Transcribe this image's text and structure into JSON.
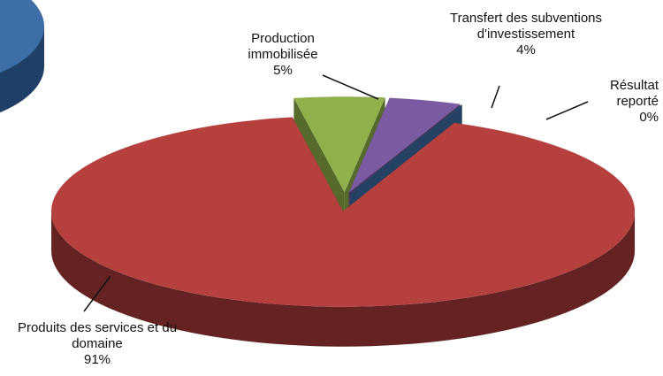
{
  "chart_data": {
    "type": "pie",
    "categories": [
      "Production immobilisée",
      "Transfert des subventions d'investissement",
      "Résultat reporté",
      "Produits des services et du domaine"
    ],
    "values": [
      5,
      4,
      0,
      91
    ],
    "value_labels": [
      "5%",
      "4%",
      "0%",
      "91%"
    ],
    "colors": [
      "#8fb04a",
      "#7a5aa0",
      "#3d6ea8",
      "#b5403e"
    ]
  }
}
